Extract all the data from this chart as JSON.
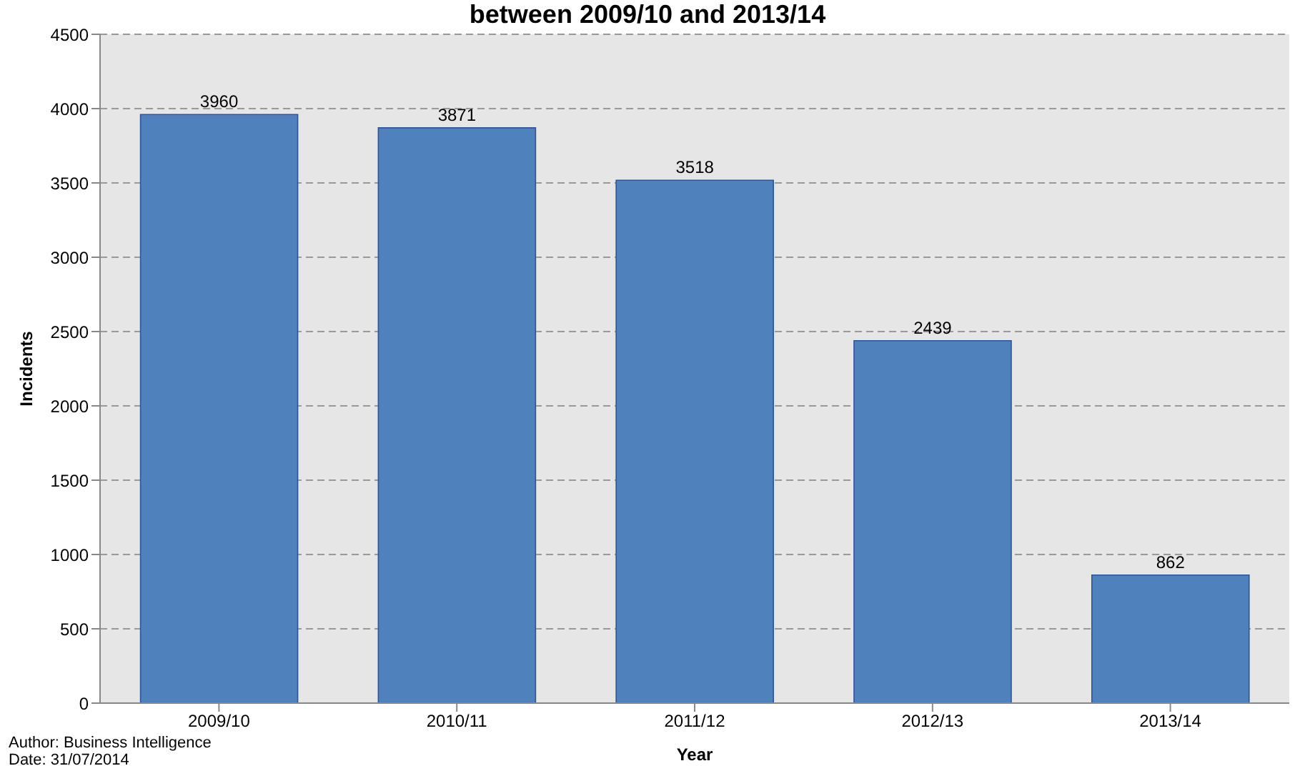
{
  "chart_data": {
    "type": "bar",
    "title": "between 2009/10 and 2013/14",
    "xlabel": "Year",
    "ylabel": "Incidents",
    "categories": [
      "2009/10",
      "2010/11",
      "2011/12",
      "2012/13",
      "2013/14"
    ],
    "values": [
      3960,
      3871,
      3518,
      2439,
      862
    ],
    "color": "#4f81bd",
    "ylim": [
      0,
      4500
    ],
    "yticks": [
      0,
      500,
      1000,
      1500,
      2000,
      2500,
      3000,
      3500,
      4000,
      4500
    ],
    "grid": "y",
    "data_labels": true,
    "annotations": [
      "Author: Business Intelligence",
      "Date: 31/07/2014"
    ]
  }
}
